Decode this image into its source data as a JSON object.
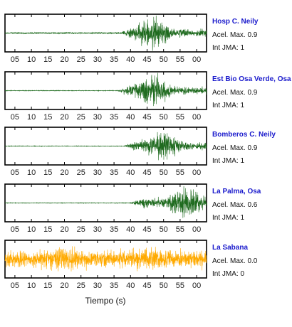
{
  "chart_data": {
    "type": "line",
    "xlabel": "Tiempo (s)",
    "x_tick_labels": [
      "05",
      "10",
      "15",
      "20",
      "25",
      "30",
      "35",
      "40",
      "45",
      "50",
      "55",
      "00"
    ],
    "amax_label": "Acel. Max.",
    "jma_label": "Int JMA:",
    "panels": [
      {
        "station": "Hosp C. Neily",
        "acel_max": "0.9",
        "int_jma": "1",
        "color": "#1f6b1f",
        "onset": 37,
        "peak": 47,
        "end": 61,
        "noise": 0.05
      },
      {
        "station": "Est Bio Osa Verde, Osa",
        "acel_max": "0.9",
        "int_jma": "1",
        "color": "#1f6b1f",
        "onset": 36,
        "peak": 47,
        "end": 61,
        "noise": 0.02
      },
      {
        "station": "Bomberos C. Neily",
        "acel_max": "0.9",
        "int_jma": "1",
        "color": "#1f6b1f",
        "onset": 38,
        "peak": 50,
        "end": 61,
        "noise": 0.02
      },
      {
        "station": "La Palma, Osa",
        "acel_max": "0.6",
        "int_jma": "1",
        "color": "#1f6b1f",
        "onset": 40,
        "peak": 57,
        "end": 63,
        "noise": 0.02
      },
      {
        "station": "La Sabana",
        "acel_max": "0.0",
        "int_jma": "0",
        "color": "#ffaa00",
        "onset": 0,
        "peak": 20,
        "end": 63,
        "noise": 0.9
      }
    ]
  }
}
